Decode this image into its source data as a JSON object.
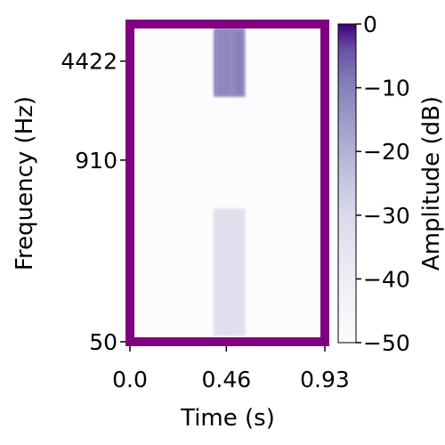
{
  "chart_data": {
    "type": "heatmap",
    "title": "",
    "xlabel": "Time (s)",
    "ylabel": "Frequency (Hz)",
    "xlim": [
      0.0,
      0.93
    ],
    "x_ticks": [
      "0.0",
      "0.46",
      "0.93"
    ],
    "y_scale": "log",
    "ylim_hz": [
      50,
      8000
    ],
    "y_ticks": [
      {
        "label": "4422",
        "value": 4422
      },
      {
        "label": "910",
        "value": 910
      },
      {
        "label": "50",
        "value": 50
      }
    ],
    "colorbar": {
      "label": "Amplitude (dB)",
      "range_db": [
        -50,
        0
      ],
      "tick_labels": [
        "0",
        "−10",
        "−20",
        "−30",
        "−40",
        "−50"
      ],
      "tick_values": [
        0,
        -10,
        -20,
        -30,
        -40,
        -50
      ],
      "colormap": "purples",
      "low_color": "#fcfbfd",
      "high_color": "#3f007d"
    },
    "frame_color": "#800080",
    "background_level_db": -50,
    "energy_regions": [
      {
        "name": "high band",
        "time_s": [
          0.4,
          0.55
        ],
        "freq_hz": [
          2500,
          7500
        ],
        "level_db": -8
      },
      {
        "name": "low band",
        "time_s": [
          0.4,
          0.55
        ],
        "freq_hz": [
          55,
          420
        ],
        "level_db": -30
      }
    ]
  }
}
